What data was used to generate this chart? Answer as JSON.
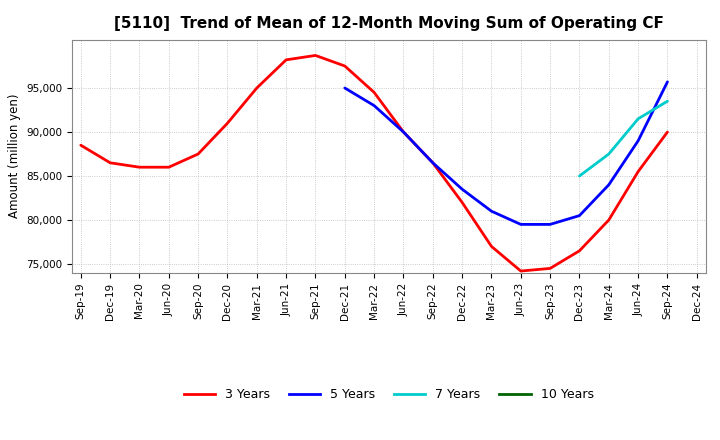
{
  "title": "[5110]  Trend of Mean of 12-Month Moving Sum of Operating CF",
  "ylabel": "Amount (million yen)",
  "ylim": [
    74000,
    100500
  ],
  "yticks": [
    75000,
    80000,
    85000,
    90000,
    95000
  ],
  "background_color": "#ffffff",
  "grid_color": "#bbbbbb",
  "series": {
    "3y": {
      "color": "#ff0000",
      "label": "3 Years",
      "x": [
        "Sep-19",
        "Dec-19",
        "Mar-20",
        "Jun-20",
        "Sep-20",
        "Dec-20",
        "Mar-21",
        "Jun-21",
        "Sep-21",
        "Dec-21",
        "Mar-22",
        "Jun-22",
        "Sep-22",
        "Dec-22",
        "Mar-23",
        "Jun-23",
        "Sep-23",
        "Dec-23",
        "Mar-24",
        "Jun-24",
        "Sep-24"
      ],
      "y": [
        88500,
        86500,
        86000,
        86000,
        87500,
        91000,
        95000,
        98200,
        98700,
        97500,
        94500,
        90000,
        86500,
        82000,
        77000,
        74200,
        74500,
        76500,
        80000,
        85500,
        90000
      ]
    },
    "5y": {
      "color": "#0000ff",
      "label": "5 Years",
      "x": [
        "Dec-21",
        "Mar-22",
        "Jun-22",
        "Sep-22",
        "Dec-22",
        "Mar-23",
        "Jun-23",
        "Sep-23",
        "Dec-23",
        "Mar-24",
        "Jun-24",
        "Sep-24"
      ],
      "y": [
        95000,
        93000,
        90000,
        86500,
        83500,
        81000,
        79500,
        79500,
        80500,
        84000,
        89000,
        95700
      ]
    },
    "7y": {
      "color": "#00cccc",
      "label": "7 Years",
      "x": [
        "Dec-23",
        "Mar-24",
        "Jun-24",
        "Sep-24"
      ],
      "y": [
        85000,
        87500,
        91500,
        93500
      ]
    },
    "10y": {
      "color": "#006400",
      "label": "10 Years",
      "x": [],
      "y": []
    }
  },
  "xtick_labels": [
    "Sep-19",
    "Dec-19",
    "Mar-20",
    "Jun-20",
    "Sep-20",
    "Dec-20",
    "Mar-21",
    "Jun-21",
    "Sep-21",
    "Dec-21",
    "Mar-22",
    "Jun-22",
    "Sep-22",
    "Dec-22",
    "Mar-23",
    "Jun-23",
    "Sep-23",
    "Dec-23",
    "Mar-24",
    "Jun-24",
    "Sep-24",
    "Dec-24"
  ],
  "title_fontsize": 11,
  "legend_fontsize": 9,
  "tick_fontsize": 7.5,
  "ylabel_fontsize": 8.5,
  "linewidth": 2.0
}
